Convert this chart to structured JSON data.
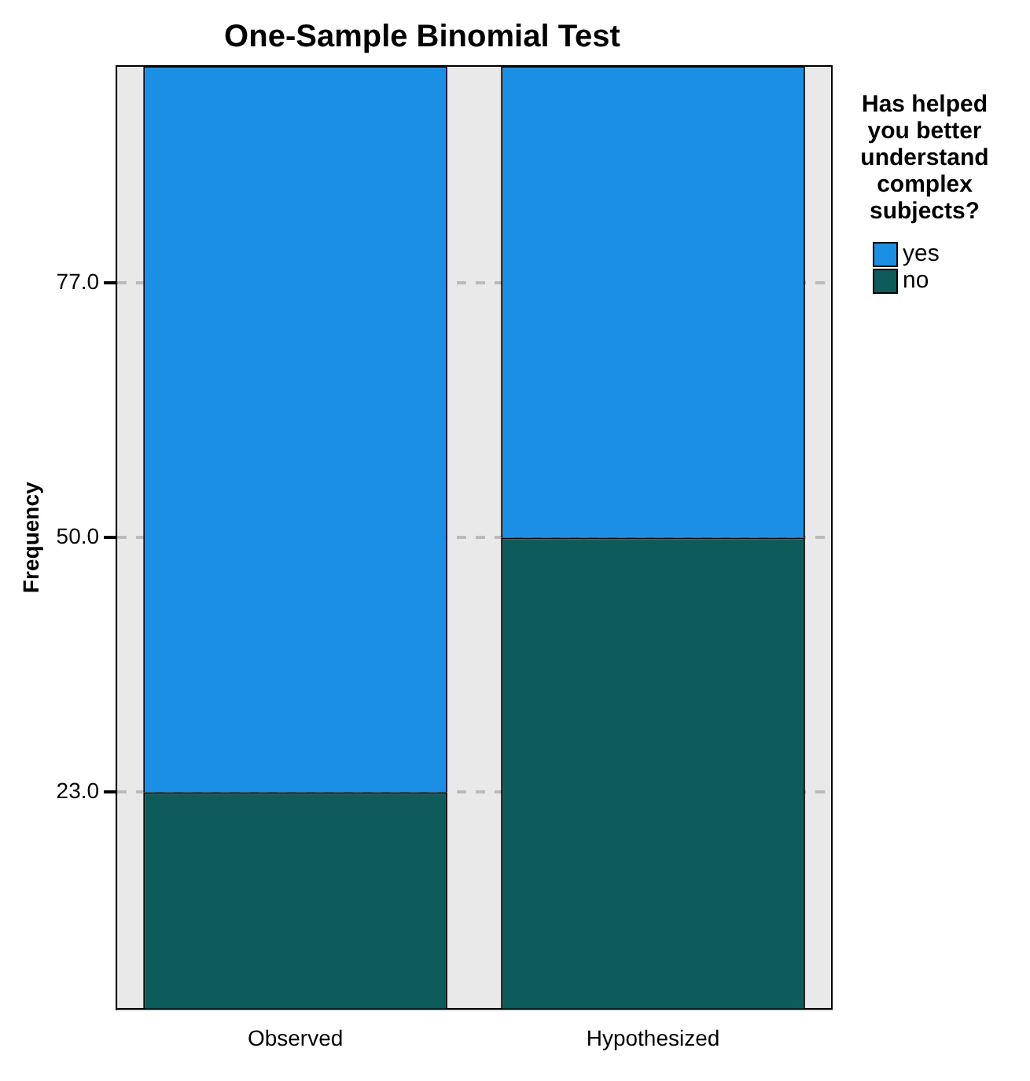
{
  "chart_data": {
    "type": "bar",
    "title": "One-Sample Binomial Test",
    "ylabel": "Frequency",
    "legend_title": "Has helped you better understand complex subjects?",
    "categories": [
      "Observed",
      "Hypothesized"
    ],
    "series": [
      {
        "name": "no",
        "color": "#0d5b5b",
        "values": [
          23,
          50
        ]
      },
      {
        "name": "yes",
        "color": "#1a8fe3",
        "values": [
          77,
          50
        ]
      }
    ],
    "stacked": true,
    "ylim": [
      0,
      100
    ],
    "yticks": [
      {
        "value": 23,
        "label": "23.0"
      },
      {
        "value": 50,
        "label": "50.0"
      },
      {
        "value": 77,
        "label": "77.0"
      }
    ],
    "grid": "y",
    "legend": "top right"
  }
}
